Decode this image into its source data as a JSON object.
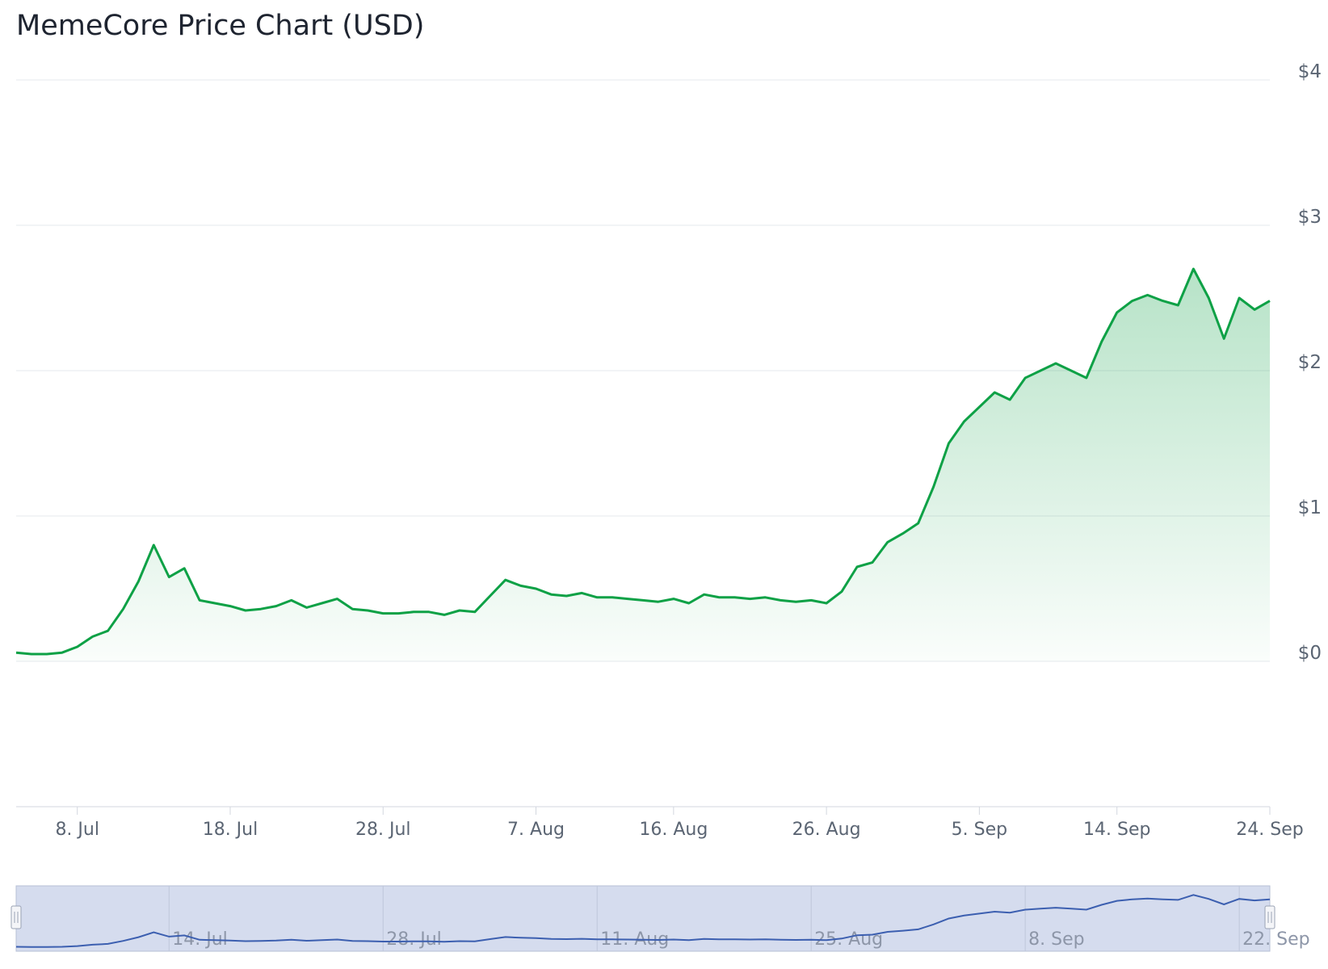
{
  "chart_data": {
    "type": "area",
    "title": "MemeCore Price Chart (USD)",
    "x_start": "2025-07-04",
    "x_end": "2025-09-24",
    "y_ticks": [
      "$0",
      "$1",
      "$2",
      "$3",
      "$4"
    ],
    "ylim": [
      -1,
      4
    ],
    "x_ticks": [
      {
        "date": "2025-07-08",
        "label": "8. Jul"
      },
      {
        "date": "2025-07-18",
        "label": "18. Jul"
      },
      {
        "date": "2025-07-28",
        "label": "28. Jul"
      },
      {
        "date": "2025-08-07",
        "label": "7. Aug"
      },
      {
        "date": "2025-08-16",
        "label": "16. Aug"
      },
      {
        "date": "2025-08-26",
        "label": "26. Aug"
      },
      {
        "date": "2025-09-05",
        "label": "5. Sep"
      },
      {
        "date": "2025-09-14",
        "label": "14. Sep"
      },
      {
        "date": "2025-09-24",
        "label": "24. Sep"
      }
    ],
    "navigator": {
      "ticks": [
        {
          "date": "2025-07-14",
          "label": "14. Jul"
        },
        {
          "date": "2025-07-28",
          "label": "28. Jul"
        },
        {
          "date": "2025-08-11",
          "label": "11. Aug"
        },
        {
          "date": "2025-08-25",
          "label": "25. Aug"
        },
        {
          "date": "2025-09-08",
          "label": "8. Sep"
        },
        {
          "date": "2025-09-22",
          "label": "22. Sep"
        }
      ]
    },
    "grid": true,
    "legend": "none",
    "line_color": "#0ea146",
    "fill_color": "#0ea146",
    "navigator_line_color": "#3c5fb0",
    "navigator_bg_color": "#d5dcee",
    "series": [
      {
        "x": [
          "2025-07-04",
          "2025-07-05",
          "2025-07-06",
          "2025-07-07",
          "2025-07-08",
          "2025-07-09",
          "2025-07-10",
          "2025-07-11",
          "2025-07-12",
          "2025-07-13",
          "2025-07-14",
          "2025-07-15",
          "2025-07-16",
          "2025-07-17",
          "2025-07-18",
          "2025-07-19",
          "2025-07-20",
          "2025-07-21",
          "2025-07-22",
          "2025-07-23",
          "2025-07-24",
          "2025-07-25",
          "2025-07-26",
          "2025-07-27",
          "2025-07-28",
          "2025-07-29",
          "2025-07-30",
          "2025-07-31",
          "2025-08-01",
          "2025-08-02",
          "2025-08-03",
          "2025-08-04",
          "2025-08-05",
          "2025-08-06",
          "2025-08-07",
          "2025-08-08",
          "2025-08-09",
          "2025-08-10",
          "2025-08-11",
          "2025-08-12",
          "2025-08-13",
          "2025-08-14",
          "2025-08-15",
          "2025-08-16",
          "2025-08-17",
          "2025-08-18",
          "2025-08-19",
          "2025-08-20",
          "2025-08-21",
          "2025-08-22",
          "2025-08-23",
          "2025-08-24",
          "2025-08-25",
          "2025-08-26",
          "2025-08-27",
          "2025-08-28",
          "2025-08-29",
          "2025-08-30",
          "2025-08-31",
          "2025-09-01",
          "2025-09-02",
          "2025-09-03",
          "2025-09-04",
          "2025-09-05",
          "2025-09-06",
          "2025-09-07",
          "2025-09-08",
          "2025-09-09",
          "2025-09-10",
          "2025-09-11",
          "2025-09-12",
          "2025-09-13",
          "2025-09-14",
          "2025-09-15",
          "2025-09-16",
          "2025-09-17",
          "2025-09-18",
          "2025-09-19",
          "2025-09-20",
          "2025-09-21",
          "2025-09-22",
          "2025-09-23",
          "2025-09-24"
        ],
        "y": [
          0.06,
          0.05,
          0.05,
          0.06,
          0.1,
          0.17,
          0.21,
          0.36,
          0.55,
          0.8,
          0.58,
          0.64,
          0.42,
          0.4,
          0.38,
          0.35,
          0.36,
          0.38,
          0.42,
          0.37,
          0.4,
          0.43,
          0.36,
          0.35,
          0.33,
          0.33,
          0.34,
          0.34,
          0.32,
          0.35,
          0.34,
          0.45,
          0.56,
          0.52,
          0.5,
          0.46,
          0.45,
          0.47,
          0.44,
          0.44,
          0.43,
          0.42,
          0.41,
          0.43,
          0.4,
          0.46,
          0.44,
          0.44,
          0.43,
          0.44,
          0.42,
          0.41,
          0.42,
          0.4,
          0.48,
          0.65,
          0.68,
          0.82,
          0.88,
          0.95,
          1.2,
          1.5,
          1.65,
          1.75,
          1.85,
          1.8,
          1.95,
          2.0,
          2.05,
          2.0,
          1.95,
          2.2,
          2.4,
          2.48,
          2.52,
          2.48,
          2.45,
          2.7,
          2.5,
          2.22,
          2.5,
          2.42,
          2.48
        ]
      }
    ]
  }
}
